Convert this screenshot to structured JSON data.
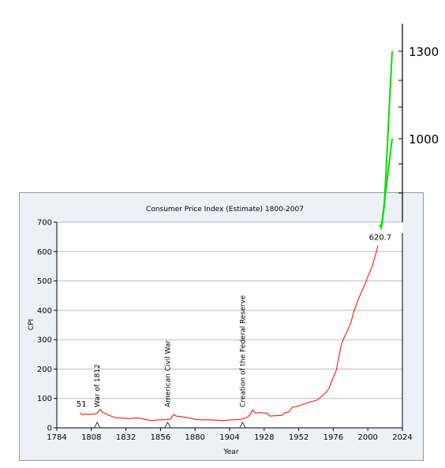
{
  "chart_data": {
    "type": "line",
    "title": "Consumer Price Index (Estimate) 1800-2007",
    "xlabel": "Year",
    "ylabel": "CPI",
    "xlim": [
      1784,
      2024
    ],
    "ylim": [
      0,
      700
    ],
    "x_ticks": [
      1784,
      1808,
      1832,
      1856,
      1880,
      1904,
      1928,
      1952,
      1976,
      2000,
      2024
    ],
    "y_ticks": [
      0,
      100,
      200,
      300,
      400,
      500,
      600,
      700
    ],
    "grid": true,
    "colors": {
      "series": "#ff0000",
      "overlay": "#00e000",
      "frame": "#000000",
      "grid": "#bbbbbc",
      "panel": "#eef0f8"
    },
    "series": [
      {
        "x": [
          1800,
          1802,
          1804,
          1806,
          1808,
          1810,
          1812,
          1814,
          1816,
          1818,
          1820,
          1825,
          1830,
          1835,
          1840,
          1845,
          1850,
          1855,
          1860,
          1863,
          1865,
          1867,
          1870,
          1875,
          1880,
          1885,
          1890,
          1895,
          1900,
          1905,
          1910,
          1913,
          1917,
          1918,
          1920,
          1922,
          1925,
          1930,
          1932,
          1935,
          1940,
          1943,
          1945,
          1948,
          1950,
          1955,
          1960,
          1965,
          1970,
          1973,
          1975,
          1978,
          1980,
          1982,
          1985,
          1988,
          1990,
          1993,
          1995,
          1998,
          2000,
          2003,
          2005,
          2007
        ],
        "y": [
          51,
          44,
          47,
          45,
          47,
          47,
          50,
          63,
          52,
          48,
          43,
          34,
          33,
          31,
          34,
          29,
          25,
          27,
          28,
          30,
          45,
          40,
          38,
          34,
          29,
          27,
          27,
          26,
          25,
          27,
          28,
          30,
          38,
          45,
          60,
          50,
          52,
          50,
          40,
          41,
          42,
          52,
          54,
          72,
          72,
          80,
          88,
          95,
          116,
          133,
          161,
          195,
          246,
          290,
          322,
          354,
          391,
          433,
          456,
          489,
          515,
          550,
          583,
          620.7
        ]
      }
    ],
    "annotations": {
      "start_label": "51",
      "end_label": "620.7",
      "events": [
        {
          "year": 1812,
          "label": "War of 1812"
        },
        {
          "year": 1861,
          "label": "American Civil War"
        },
        {
          "year": 1913,
          "label": "Creation of the Federal Reserve"
        }
      ]
    },
    "overlay": {
      "ticks": [
        1000,
        1300
      ],
      "tick_labels": [
        "1000",
        "1300"
      ]
    }
  }
}
